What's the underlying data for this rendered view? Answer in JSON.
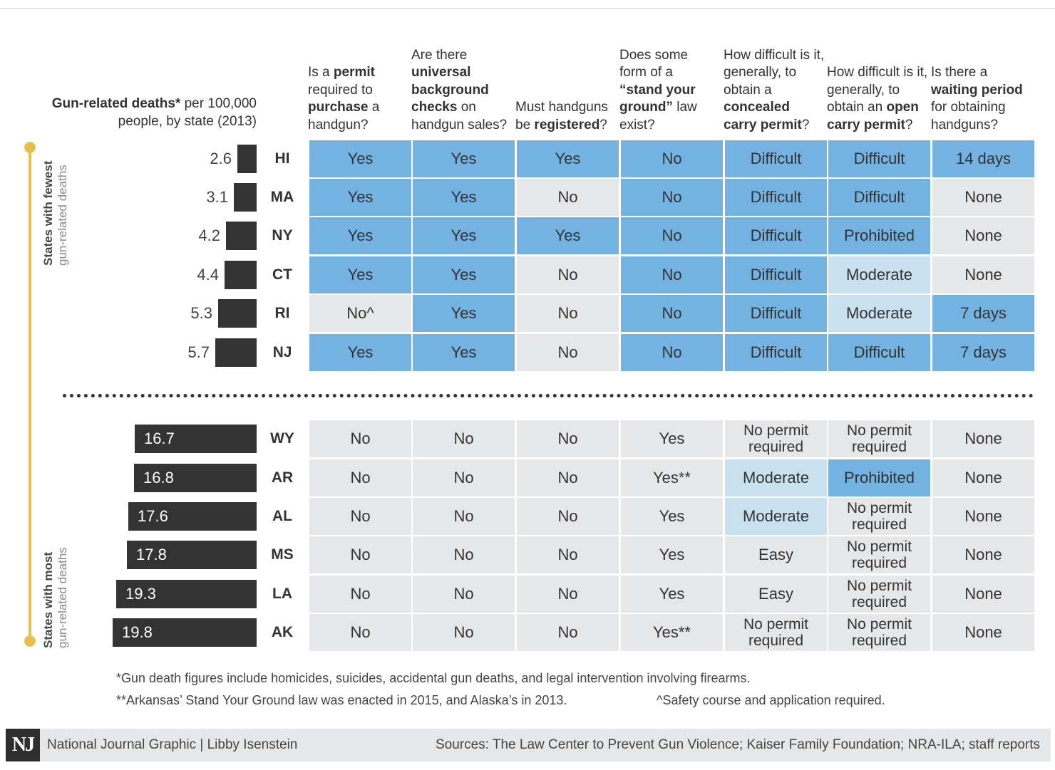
{
  "chart_data": {
    "type": "table",
    "title_bold": "Gun-related deaths*",
    "title_rest": " per 100,000 people, by state (2013)",
    "groups": [
      {
        "label": "States with fewest",
        "sublabel": "gun-related deaths"
      },
      {
        "label": "States with most",
        "sublabel": "gun-related deaths"
      }
    ],
    "columns": [
      {
        "parts": [
          {
            "t": "Is a ",
            "b": false
          },
          {
            "t": "permit",
            "b": true
          },
          {
            "t": " required to ",
            "b": false
          },
          {
            "t": "purchase",
            "b": true
          },
          {
            "t": " a handgun?",
            "b": false
          }
        ]
      },
      {
        "parts": [
          {
            "t": "Are there ",
            "b": false
          },
          {
            "t": "universal background checks",
            "b": true
          },
          {
            "t": " on handgun sales?",
            "b": false
          }
        ]
      },
      {
        "parts": [
          {
            "t": "Must handguns be ",
            "b": false
          },
          {
            "t": "registered",
            "b": true
          },
          {
            "t": "?",
            "b": false
          }
        ]
      },
      {
        "parts": [
          {
            "t": "Does some form of a ",
            "b": false
          },
          {
            "t": "“stand your ground”",
            "b": true
          },
          {
            "t": " law exist?",
            "b": false
          }
        ]
      },
      {
        "parts": [
          {
            "t": "How difficult is it, generally, to obtain a ",
            "b": false
          },
          {
            "t": "concealed carry permit",
            "b": true
          },
          {
            "t": "?",
            "b": false
          }
        ]
      },
      {
        "parts": [
          {
            "t": "How difficult is it, generally, to obtain an ",
            "b": false
          },
          {
            "t": "open carry permit",
            "b": true
          },
          {
            "t": "?",
            "b": false
          }
        ]
      },
      {
        "parts": [
          {
            "t": "Is there a ",
            "b": false
          },
          {
            "t": "waiting period",
            "b": true
          },
          {
            "t": " for obtaining handguns?",
            "b": false
          }
        ]
      }
    ],
    "xlim": [
      0,
      19.8
    ],
    "rows": [
      {
        "group": 0,
        "state": "HI",
        "deaths": 2.6,
        "label": "2.6",
        "cells": [
          [
            "Yes",
            "dark"
          ],
          [
            "Yes",
            "dark"
          ],
          [
            "Yes",
            "dark"
          ],
          [
            "No",
            "dark"
          ],
          [
            "Difficult",
            "dark"
          ],
          [
            "Difficult",
            "dark"
          ],
          [
            "14 days",
            "dark"
          ]
        ]
      },
      {
        "group": 0,
        "state": "MA",
        "deaths": 3.1,
        "label": "3.1",
        "cells": [
          [
            "Yes",
            "dark"
          ],
          [
            "Yes",
            "dark"
          ],
          [
            "No",
            "gray"
          ],
          [
            "No",
            "dark"
          ],
          [
            "Difficult",
            "dark"
          ],
          [
            "Difficult",
            "dark"
          ],
          [
            "None",
            "gray"
          ]
        ]
      },
      {
        "group": 0,
        "state": "NY",
        "deaths": 4.2,
        "label": "4.2",
        "cells": [
          [
            "Yes",
            "dark"
          ],
          [
            "Yes",
            "dark"
          ],
          [
            "Yes",
            "dark"
          ],
          [
            "No",
            "dark"
          ],
          [
            "Difficult",
            "dark"
          ],
          [
            "Prohibited",
            "dark"
          ],
          [
            "None",
            "gray"
          ]
        ]
      },
      {
        "group": 0,
        "state": "CT",
        "deaths": 4.4,
        "label": "4.4",
        "cells": [
          [
            "Yes",
            "dark"
          ],
          [
            "Yes",
            "dark"
          ],
          [
            "No",
            "gray"
          ],
          [
            "No",
            "dark"
          ],
          [
            "Difficult",
            "dark"
          ],
          [
            "Moderate",
            "light"
          ],
          [
            "None",
            "gray"
          ]
        ]
      },
      {
        "group": 0,
        "state": "RI",
        "deaths": 5.3,
        "label": "5.3",
        "cells": [
          [
            "No^",
            "gray"
          ],
          [
            "Yes",
            "dark"
          ],
          [
            "No",
            "gray"
          ],
          [
            "No",
            "dark"
          ],
          [
            "Difficult",
            "dark"
          ],
          [
            "Moderate",
            "light"
          ],
          [
            "7 days",
            "dark"
          ]
        ]
      },
      {
        "group": 0,
        "state": "NJ",
        "deaths": 5.7,
        "label": "5.7",
        "cells": [
          [
            "Yes",
            "dark"
          ],
          [
            "Yes",
            "dark"
          ],
          [
            "No",
            "gray"
          ],
          [
            "No",
            "dark"
          ],
          [
            "Difficult",
            "dark"
          ],
          [
            "Difficult",
            "dark"
          ],
          [
            "7 days",
            "dark"
          ]
        ]
      },
      {
        "group": 1,
        "state": "WY",
        "deaths": 16.7,
        "label": "16.7",
        "cells": [
          [
            "No",
            "gray"
          ],
          [
            "No",
            "gray"
          ],
          [
            "No",
            "gray"
          ],
          [
            "Yes",
            "gray"
          ],
          [
            "No permit required",
            "gray"
          ],
          [
            "No permit required",
            "gray"
          ],
          [
            "None",
            "gray"
          ]
        ]
      },
      {
        "group": 1,
        "state": "AR",
        "deaths": 16.8,
        "label": "16.8",
        "cells": [
          [
            "No",
            "gray"
          ],
          [
            "No",
            "gray"
          ],
          [
            "No",
            "gray"
          ],
          [
            "Yes**",
            "gray"
          ],
          [
            "Moderate",
            "light"
          ],
          [
            "Prohibited",
            "dark"
          ],
          [
            "None",
            "gray"
          ]
        ]
      },
      {
        "group": 1,
        "state": "AL",
        "deaths": 17.6,
        "label": "17.6",
        "cells": [
          [
            "No",
            "gray"
          ],
          [
            "No",
            "gray"
          ],
          [
            "No",
            "gray"
          ],
          [
            "Yes",
            "gray"
          ],
          [
            "Moderate",
            "light"
          ],
          [
            "No permit required",
            "gray"
          ],
          [
            "None",
            "gray"
          ]
        ]
      },
      {
        "group": 1,
        "state": "MS",
        "deaths": 17.8,
        "label": "17.8",
        "cells": [
          [
            "No",
            "gray"
          ],
          [
            "No",
            "gray"
          ],
          [
            "No",
            "gray"
          ],
          [
            "Yes",
            "gray"
          ],
          [
            "Easy",
            "gray"
          ],
          [
            "No permit required",
            "gray"
          ],
          [
            "None",
            "gray"
          ]
        ]
      },
      {
        "group": 1,
        "state": "LA",
        "deaths": 19.3,
        "label": "19.3",
        "cells": [
          [
            "No",
            "gray"
          ],
          [
            "No",
            "gray"
          ],
          [
            "No",
            "gray"
          ],
          [
            "Yes",
            "gray"
          ],
          [
            "Easy",
            "gray"
          ],
          [
            "No permit required",
            "gray"
          ],
          [
            "None",
            "gray"
          ]
        ]
      },
      {
        "group": 1,
        "state": "AK",
        "deaths": 19.8,
        "label": "19.8",
        "cells": [
          [
            "No",
            "gray"
          ],
          [
            "No",
            "gray"
          ],
          [
            "No",
            "gray"
          ],
          [
            "Yes**",
            "gray"
          ],
          [
            "No permit required",
            "gray"
          ],
          [
            "No permit required",
            "gray"
          ],
          [
            "None",
            "gray"
          ]
        ]
      }
    ],
    "colors": {
      "dark": "#74b2e2",
      "light": "#c8e0ef",
      "gray": "#e6e7e8",
      "bar": "#333333",
      "timeline": "#e4c14f"
    }
  },
  "notes": {
    "note1": "*Gun death figures include homicides, suicides, accidental gun deaths, and legal intervention involving firearms.",
    "note2": "**Arkansas’ Stand Your Ground law was enacted in 2015, and Alaska’s in 2013.",
    "note3": "^Safety course and application required."
  },
  "footer": {
    "logo": "NJ",
    "credit": "National Journal Graphic  |  Libby Isenstein",
    "sources": "Sources: The Law Center to Prevent Gun Violence; Kaiser Family Foundation; NRA-ILA; staff reports"
  }
}
